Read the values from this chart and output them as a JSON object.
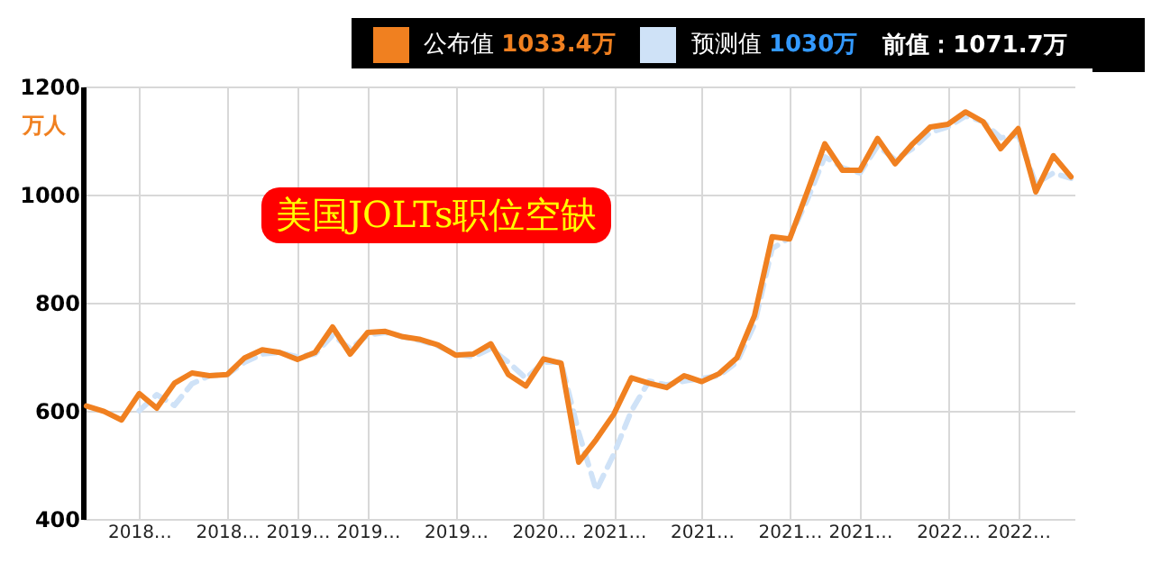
{
  "chart_data": {
    "type": "line",
    "title": "美国JOLTs职位空缺",
    "ylabel": "万人",
    "categories": [
      null,
      null,
      null,
      "2018…",
      null,
      null,
      null,
      null,
      "2018…",
      null,
      null,
      null,
      "2019…",
      null,
      null,
      null,
      "2019…",
      null,
      null,
      null,
      null,
      "2019…",
      null,
      null,
      null,
      null,
      "2020…",
      null,
      null,
      null,
      "2021…",
      null,
      null,
      null,
      null,
      "2021…",
      null,
      null,
      null,
      null,
      "2021…",
      null,
      null,
      null,
      "2021…",
      null,
      null,
      null,
      null,
      "2022…",
      null,
      null,
      null,
      "2022…",
      null,
      null,
      null
    ],
    "series": [
      {
        "name": "预测值",
        "color": "#cfe2f7",
        "line_style": "dashed",
        "values": [
          null,
          null,
          null,
          600,
          630,
          610,
          650,
          665,
          667,
          690,
          705,
          708,
          700,
          705,
          740,
          715,
          740,
          745,
          737,
          730,
          720,
          705,
          700,
          715,
          690,
          660,
          690,
          690,
          560,
          453,
          520,
          600,
          655,
          648,
          655,
          660,
          665,
          690,
          760,
          900,
          920,
          990,
          1070,
          1050,
          1040,
          1090,
          1065,
          1085,
          1115,
          1125,
          1145,
          1135,
          1105,
          1110,
          1020,
          1040,
          1030
        ]
      },
      {
        "name": "公布值",
        "color": "#f08020",
        "values": [
          609,
          599,
          583,
          632,
          605,
          651,
          670,
          665,
          667,
          698,
          713,
          708,
          695,
          708,
          755,
          705,
          745,
          747,
          737,
          732,
          722,
          703,
          705,
          724,
          667,
          646,
          696,
          688,
          505,
          547,
          594,
          661,
          651,
          643,
          665,
          654,
          669,
          698,
          776,
          922,
          918,
          1005,
          1094,
          1045,
          1045,
          1104,
          1057,
          1094,
          1125,
          1130,
          1153,
          1135,
          1085,
          1122,
          1005,
          1072,
          1033
        ]
      }
    ],
    "ylim": [
      400,
      1200
    ],
    "yticks": [
      400,
      600,
      800,
      1000,
      1200
    ],
    "grid": true,
    "legend": "top",
    "annotations": [
      "1033.4万",
      "1030万",
      "前值：1071.7万"
    ]
  }
}
